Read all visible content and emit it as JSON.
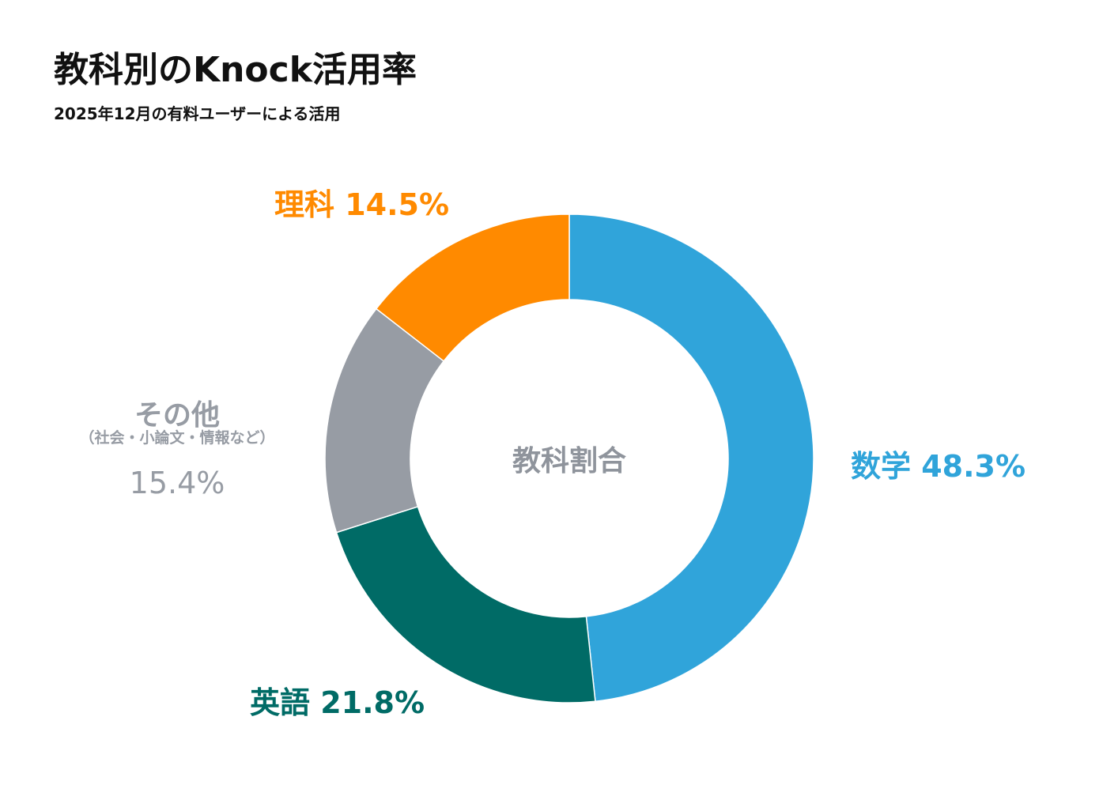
{
  "header": {
    "title": "教科別のKnock活用率",
    "subtitle": "2025年12月の有料ユーザーによる活用"
  },
  "chart_data": {
    "type": "pie",
    "donut": true,
    "center_label": "教科割合",
    "title": "教科別のKnock活用率",
    "subtitle": "2025年12月の有料ユーザーによる活用",
    "unit": "%",
    "slices": [
      {
        "name": "数学",
        "value": 48.3,
        "label": "数学 48.3%",
        "color": "#30a4da"
      },
      {
        "name": "英語",
        "value": 21.8,
        "label": "英語 21.8%",
        "color": "#006b66"
      },
      {
        "name": "その他",
        "note": "（社会・小論文・情報など）",
        "value": 15.4,
        "label": "15.4%",
        "color": "#979ca4"
      },
      {
        "name": "理科",
        "value": 14.5,
        "label": "理科 14.5%",
        "color": "#ff8a00"
      }
    ],
    "legend": "none",
    "grid": false
  }
}
